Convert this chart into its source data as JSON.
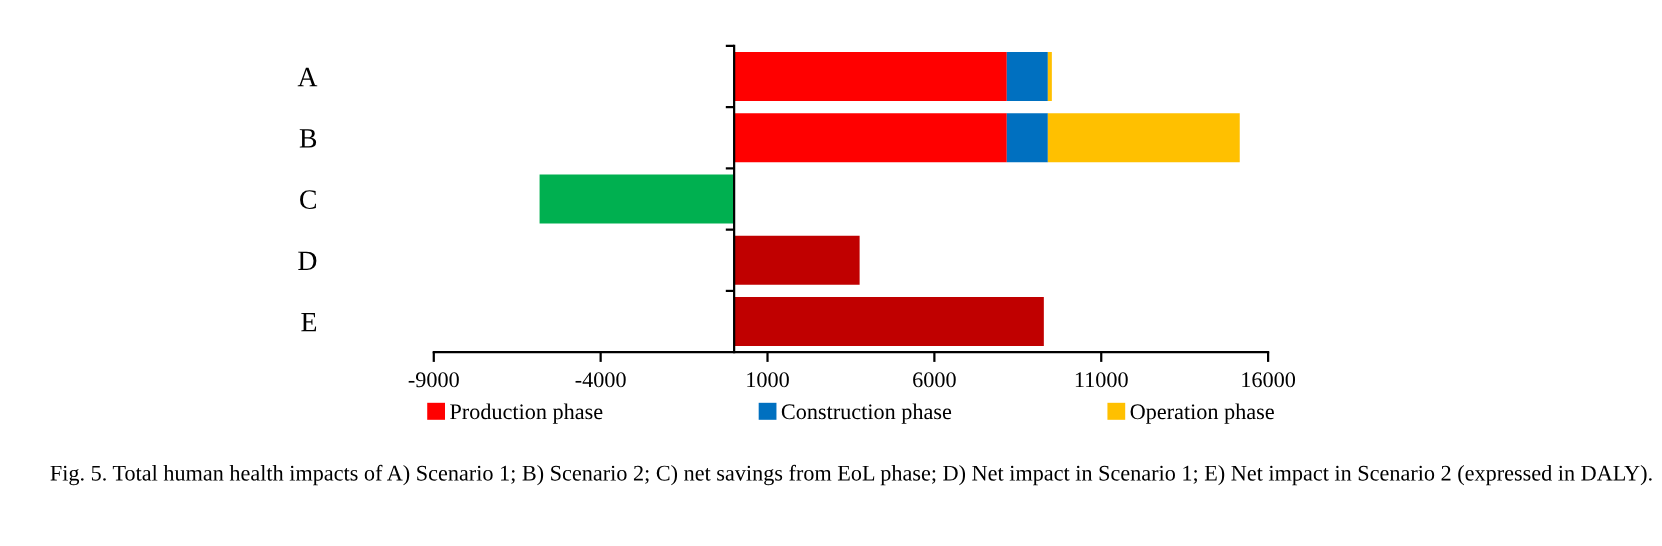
{
  "chart_data": {
    "type": "bar",
    "orientation": "horizontal",
    "stacked": true,
    "categories": [
      "A",
      "B",
      "C",
      "D",
      "E"
    ],
    "series": [
      {
        "name": "Production phase",
        "color": "#ff0000",
        "values": [
          8170,
          8170,
          null,
          null,
          null
        ]
      },
      {
        "name": "Construction phase",
        "color": "#0070c0",
        "values": [
          1230,
          1230,
          null,
          null,
          null
        ]
      },
      {
        "name": "Operation phase",
        "color": "#ffc000",
        "values": [
          120,
          5750,
          null,
          null,
          null
        ]
      },
      {
        "color": "#00b050",
        "values": [
          null,
          null,
          -5830,
          null,
          null
        ]
      },
      {
        "color": "#c00000",
        "values": [
          null,
          null,
          null,
          3760,
          9280
        ]
      }
    ],
    "xlim": [
      -9000,
      16000
    ],
    "xticks": [
      -9000,
      -4000,
      1000,
      6000,
      11000,
      16000
    ],
    "legend": "bottom",
    "grid": false,
    "annotations": [
      "Fig. 5. Total human health impacts of A) Scenario 1; B) Scenario 2; C) net savings from EoL phase; D) Net impact in Scenario 1; E) Net impact in Scenario 2 (expressed in DALY)."
    ]
  }
}
